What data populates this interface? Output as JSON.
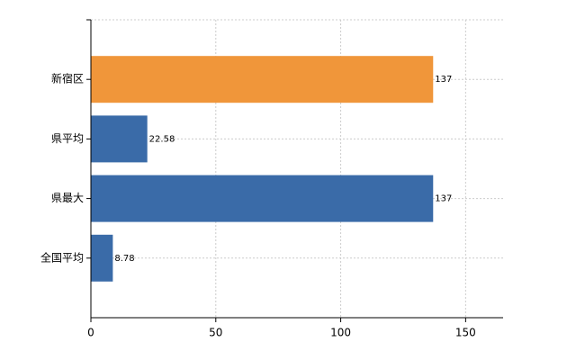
{
  "chart_data": {
    "type": "bar",
    "orientation": "horizontal",
    "categories": [
      "新宿区",
      "県平均",
      "県最大",
      "全国平均"
    ],
    "values": [
      137,
      22.58,
      137,
      8.78
    ],
    "colors": [
      "#f0963a",
      "#3a6ba8",
      "#3a6ba8",
      "#3a6ba8"
    ],
    "xlim": [
      0,
      165
    ],
    "xticks": [
      0,
      50,
      100,
      150
    ],
    "grid": true
  }
}
